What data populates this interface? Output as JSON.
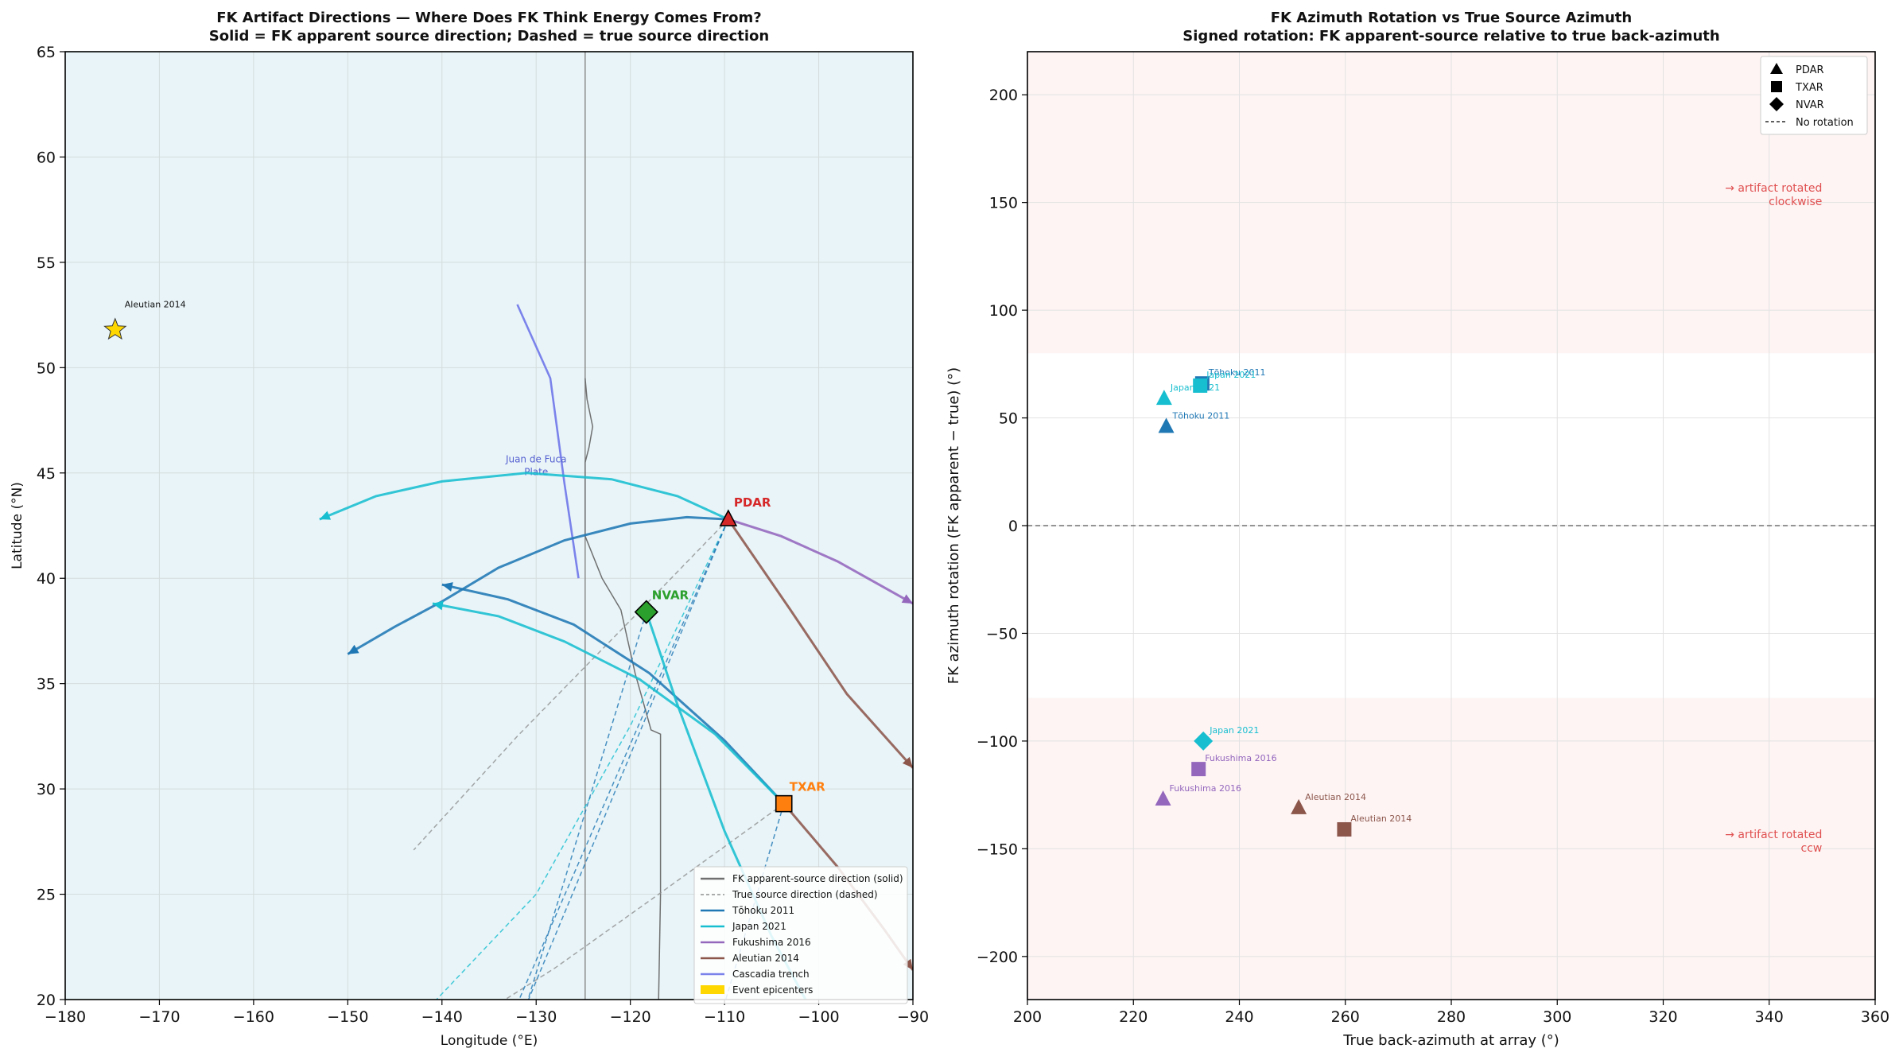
{
  "chart_data": [
    {
      "type": "line",
      "title": "FK Artifact Directions — Where Does FK Think Energy Comes From?",
      "subtitle": "Solid = FK apparent source direction; Dashed = true source direction",
      "xlabel": "Longitude (°E)",
      "ylabel": "Latitude (°N)",
      "xlim": [
        -180,
        -90
      ],
      "ylim": [
        20,
        65
      ],
      "xticks": [
        -180,
        -170,
        -160,
        -150,
        -140,
        -130,
        -120,
        -110,
        -100,
        -90
      ],
      "yticks": [
        20,
        25,
        30,
        35,
        40,
        45,
        50,
        55,
        60,
        65
      ],
      "grid": true,
      "legend_position": "lower-right",
      "colors": {
        "background": "#e8f4f8",
        "tohoku": "#1f77b4",
        "japan": "#17becf",
        "fukushima": "#9467bd",
        "aleutian": "#8c564b",
        "cascadia": "#7b83eb",
        "coast": "#707070",
        "pdar": "#d62728",
        "txar": "#ff7f0e",
        "nvar": "#2ca02c",
        "epicenter": "#ffd700"
      },
      "legend": [
        {
          "label": "FK apparent-source direction (solid)",
          "color": "#707070",
          "style": "solid"
        },
        {
          "label": "True source direction (dashed)",
          "color": "#909090",
          "style": "dashed"
        },
        {
          "label": "Tōhoku 2011",
          "color": "#1f77b4",
          "style": "solid"
        },
        {
          "label": "Japan 2021",
          "color": "#17becf",
          "style": "solid"
        },
        {
          "label": "Fukushima 2016",
          "color": "#9467bd",
          "style": "solid"
        },
        {
          "label": "Aleutian 2014",
          "color": "#8c564b",
          "style": "solid"
        },
        {
          "label": "Cascadia trench",
          "color": "#7b83eb",
          "style": "solid"
        },
        {
          "label": "Event epicenters",
          "color": "#ffd700",
          "style": "patch"
        }
      ],
      "arrays": [
        {
          "name": "PDAR",
          "lon": -109.6,
          "lat": 42.8,
          "marker": "triangle",
          "color": "#d62728"
        },
        {
          "name": "TXAR",
          "lon": -103.7,
          "lat": 29.3,
          "marker": "square",
          "color": "#ff7f0e"
        },
        {
          "name": "NVAR",
          "lon": -118.3,
          "lat": 38.4,
          "marker": "diamond",
          "color": "#2ca02c"
        }
      ],
      "epicenters": [
        {
          "name": "Aleutian 2014",
          "lon": -174.7,
          "lat": 51.8
        }
      ],
      "annotations": [
        {
          "text": "Juan de Fuca\nPlate",
          "lon": -130,
          "lat": 45.5
        }
      ],
      "fk_paths": [
        {
          "event": "Tōhoku 2011",
          "color": "#1f77b4",
          "points": [
            [
              -109.6,
              42.8
            ],
            [
              -114,
              42.9
            ],
            [
              -120,
              42.6
            ],
            [
              -127,
              41.8
            ],
            [
              -134,
              40.5
            ],
            [
              -140,
              38.9
            ],
            [
              -145,
              37.7
            ],
            [
              -150,
              36.4
            ]
          ]
        },
        {
          "event": "Japan 2021",
          "color": "#17becf",
          "points": [
            [
              -109.6,
              42.8
            ],
            [
              -115,
              43.9
            ],
            [
              -122,
              44.7
            ],
            [
              -131,
              45.0
            ],
            [
              -140,
              44.6
            ],
            [
              -147,
              43.9
            ],
            [
              -153,
              42.8
            ]
          ]
        },
        {
          "event": "Fukushima 2016",
          "color": "#9467bd",
          "points": [
            [
              -109.6,
              42.8
            ],
            [
              -104,
              42.0
            ],
            [
              -98,
              40.8
            ],
            [
              -90,
              38.8
            ]
          ]
        },
        {
          "event": "Aleutian 2014",
          "color": "#8c564b",
          "points": [
            [
              -109.6,
              42.8
            ],
            [
              -103,
              38.5
            ],
            [
              -97,
              34.5
            ],
            [
              -90,
              31.0
            ]
          ]
        },
        {
          "event": "Tōhoku 2011",
          "color": "#1f77b4",
          "points": [
            [
              -103.7,
              29.3
            ],
            [
              -110,
              32.3
            ],
            [
              -118,
              35.5
            ],
            [
              -126,
              37.8
            ],
            [
              -133,
              39.0
            ],
            [
              -140,
              39.7
            ]
          ]
        },
        {
          "event": "Japan 2021",
          "color": "#17becf",
          "points": [
            [
              -103.7,
              29.3
            ],
            [
              -111,
              32.6
            ],
            [
              -119,
              35.2
            ],
            [
              -127,
              37.0
            ],
            [
              -134,
              38.2
            ],
            [
              -141,
              38.8
            ]
          ]
        },
        {
          "event": "Aleutian 2014",
          "color": "#8c564b",
          "points": [
            [
              -103.7,
              29.3
            ],
            [
              -98,
              26.3
            ],
            [
              -93,
              23.3
            ],
            [
              -90,
              21.4
            ]
          ]
        },
        {
          "event": "Japan 2021",
          "color": "#17becf",
          "points": [
            [
              -118.3,
              38.4
            ],
            [
              -115,
              34.0
            ],
            [
              -110,
              28.0
            ],
            [
              -105,
              23.0
            ],
            [
              -99,
              18.0
            ]
          ]
        }
      ],
      "true_paths": [
        {
          "color": "#909090",
          "points": [
            [
              -109.6,
              42.8
            ],
            [
              -120,
              38.0
            ],
            [
              -132,
              32.5
            ],
            [
              -143,
              27.1
            ]
          ]
        },
        {
          "color": "#909090",
          "points": [
            [
              -103.7,
              29.3
            ],
            [
              -117,
              25.0
            ],
            [
              -128,
              21.5
            ],
            [
              -134,
              19.8
            ]
          ]
        },
        {
          "color": "#17becf",
          "points": [
            [
              -109.6,
              42.8
            ],
            [
              -120,
              33.0
            ],
            [
              -130,
              25.0
            ],
            [
              -141,
              19.8
            ]
          ]
        },
        {
          "color": "#1f77b4",
          "points": [
            [
              -109.6,
              42.8
            ],
            [
              -132,
              19.8
            ]
          ]
        },
        {
          "color": "#1f77b4",
          "points": [
            [
              -109.6,
              42.8
            ],
            [
              -131,
              19.8
            ]
          ]
        },
        {
          "color": "#1f77b4",
          "points": [
            [
              -118.3,
              38.4
            ],
            [
              -131,
              19.8
            ]
          ]
        },
        {
          "color": "#1f77b4",
          "points": [
            [
              -103.7,
              29.3
            ],
            [
              -110,
              19.8
            ]
          ]
        }
      ],
      "cascadia_trench": [
        [
          -132,
          53
        ],
        [
          -128.5,
          49.5
        ],
        [
          -127,
          44.5
        ],
        [
          -125.5,
          40.0
        ]
      ],
      "coastline": [
        [
          -124.8,
          49.5
        ],
        [
          -124.6,
          48.5
        ],
        [
          -124,
          47.2
        ],
        [
          -124.4,
          46.2
        ],
        [
          -124.8,
          45.5
        ],
        [
          -124.8,
          42.0
        ],
        [
          -123,
          40.0
        ],
        [
          -121,
          38.5
        ],
        [
          -119.5,
          35.5
        ],
        [
          -117.8,
          32.8
        ],
        [
          -116.8,
          32.6
        ],
        [
          -116.8,
          25.0
        ],
        [
          -117,
          20.0
        ]
      ],
      "meridian_line": -124.8
    },
    {
      "type": "scatter",
      "title": "FK Azimuth Rotation vs True Source Azimuth",
      "subtitle": "Signed rotation: FK apparent-source relative to true back-azimuth",
      "xlabel": "True back-azimuth at array (°)",
      "ylabel": "FK azimuth rotation (FK apparent − true) (°)",
      "xlim": [
        200,
        360
      ],
      "ylim": [
        -220,
        220
      ],
      "xticks": [
        200,
        220,
        240,
        260,
        280,
        300,
        320,
        340,
        360
      ],
      "yticks": [
        -200,
        -150,
        -100,
        -50,
        0,
        50,
        100,
        150,
        200
      ],
      "grid": true,
      "legend_position": "top-right",
      "legend": [
        {
          "label": "PDAR",
          "marker": "triangle"
        },
        {
          "label": "TXAR",
          "marker": "square"
        },
        {
          "label": "NVAR",
          "marker": "diamond"
        },
        {
          "label": "No rotation",
          "marker": "dashed-line"
        }
      ],
      "shaded_bands": [
        {
          "y_from": 80,
          "y_to": 220,
          "color": "#fdecec"
        },
        {
          "y_from": -220,
          "y_to": -80,
          "color": "#fdecec"
        }
      ],
      "reference_line_y": 0,
      "region_labels": [
        {
          "text": "→ artifact rotated\nclockwise",
          "x": 350,
          "y": 155
        },
        {
          "text": "→ artifact rotated\nccw",
          "x": 350,
          "y": -145
        }
      ],
      "points": [
        {
          "array": "PDAR",
          "marker": "triangle",
          "event": "Japan 2021",
          "x": 225.8,
          "y": 59,
          "color": "#17becf"
        },
        {
          "array": "PDAR",
          "marker": "triangle",
          "event": "Tōhoku 2011",
          "x": 226.2,
          "y": 46,
          "color": "#1f77b4"
        },
        {
          "array": "PDAR",
          "marker": "triangle",
          "event": "Fukushima 2016",
          "x": 225.6,
          "y": -127,
          "color": "#9467bd"
        },
        {
          "array": "PDAR",
          "marker": "triangle",
          "event": "Aleutian 2014",
          "x": 251.2,
          "y": -131,
          "color": "#8c564b"
        },
        {
          "array": "TXAR",
          "marker": "square",
          "event": "Tōhoku 2011",
          "x": 233,
          "y": 66,
          "color": "#1f77b4"
        },
        {
          "array": "TXAR",
          "marker": "square",
          "event": "Japan 2021",
          "x": 232.6,
          "y": 65,
          "color": "#17becf"
        },
        {
          "array": "TXAR",
          "marker": "square",
          "event": "Fukushima 2016",
          "x": 232.3,
          "y": -113,
          "color": "#9467bd"
        },
        {
          "array": "TXAR",
          "marker": "square",
          "event": "Aleutian 2014",
          "x": 259.8,
          "y": -141,
          "color": "#8c564b"
        },
        {
          "array": "NVAR",
          "marker": "diamond",
          "event": "Japan 2021",
          "x": 233.2,
          "y": -100,
          "color": "#17becf"
        }
      ]
    }
  ]
}
